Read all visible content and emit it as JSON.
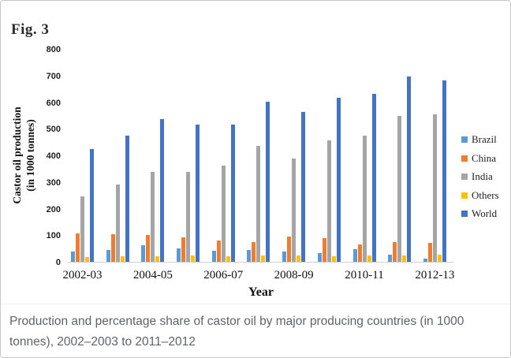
{
  "figure": {
    "label": "Fig. 3"
  },
  "caption": "Production and percentage share of castor oil by major producing countries (in 1000 tonnes), 2002–2003 to 2011–2012",
  "chart_data": {
    "type": "bar",
    "title": "",
    "xlabel": "Year",
    "ylabel": "Castor oil production (in 1000 tonnes)",
    "ylabel_line1": "Castor oil production",
    "ylabel_line2": "(in 1000 tonnes)",
    "ylim": [
      0,
      800
    ],
    "ytick_step": 100,
    "ytick_labels": [
      "0",
      "100",
      "200",
      "300",
      "400",
      "500",
      "600",
      "700",
      "800"
    ],
    "grid": false,
    "legend_position": "right",
    "categories": [
      "2002-03",
      "2003-04",
      "2004-05",
      "2005-06",
      "2006-07",
      "2007-08",
      "2008-09",
      "2009-10",
      "2010-11",
      "2011-12",
      "2012-13"
    ],
    "xtick_shown_every": 2,
    "xtick_labels_shown": [
      "2002-03",
      "2004-05",
      "2006-07",
      "2008-09",
      "2010-11",
      "2012-13"
    ],
    "series": [
      {
        "name": "Brazil",
        "color": "#5B9BD5",
        "values": [
          38,
          45,
          62,
          50,
          40,
          45,
          38,
          33,
          47,
          26,
          12
        ]
      },
      {
        "name": "China",
        "color": "#ED7D31",
        "values": [
          108,
          105,
          100,
          93,
          80,
          75,
          95,
          88,
          66,
          74,
          72
        ]
      },
      {
        "name": "India",
        "color": "#A5A5A5",
        "values": [
          245,
          290,
          338,
          338,
          360,
          437,
          387,
          455,
          473,
          548,
          555
        ]
      },
      {
        "name": "Others",
        "color": "#FFC000",
        "values": [
          18,
          20,
          22,
          23,
          21,
          24,
          25,
          20,
          23,
          25,
          28
        ]
      },
      {
        "name": "World",
        "color": "#4472C4",
        "values": [
          425,
          475,
          537,
          516,
          516,
          602,
          563,
          616,
          632,
          697,
          682
        ]
      }
    ]
  },
  "colors": {
    "frame_border": "#c9c9c9",
    "axis_line": "#cfcfcf",
    "caption_text": "#5f6368",
    "chart_text": "#111111"
  }
}
